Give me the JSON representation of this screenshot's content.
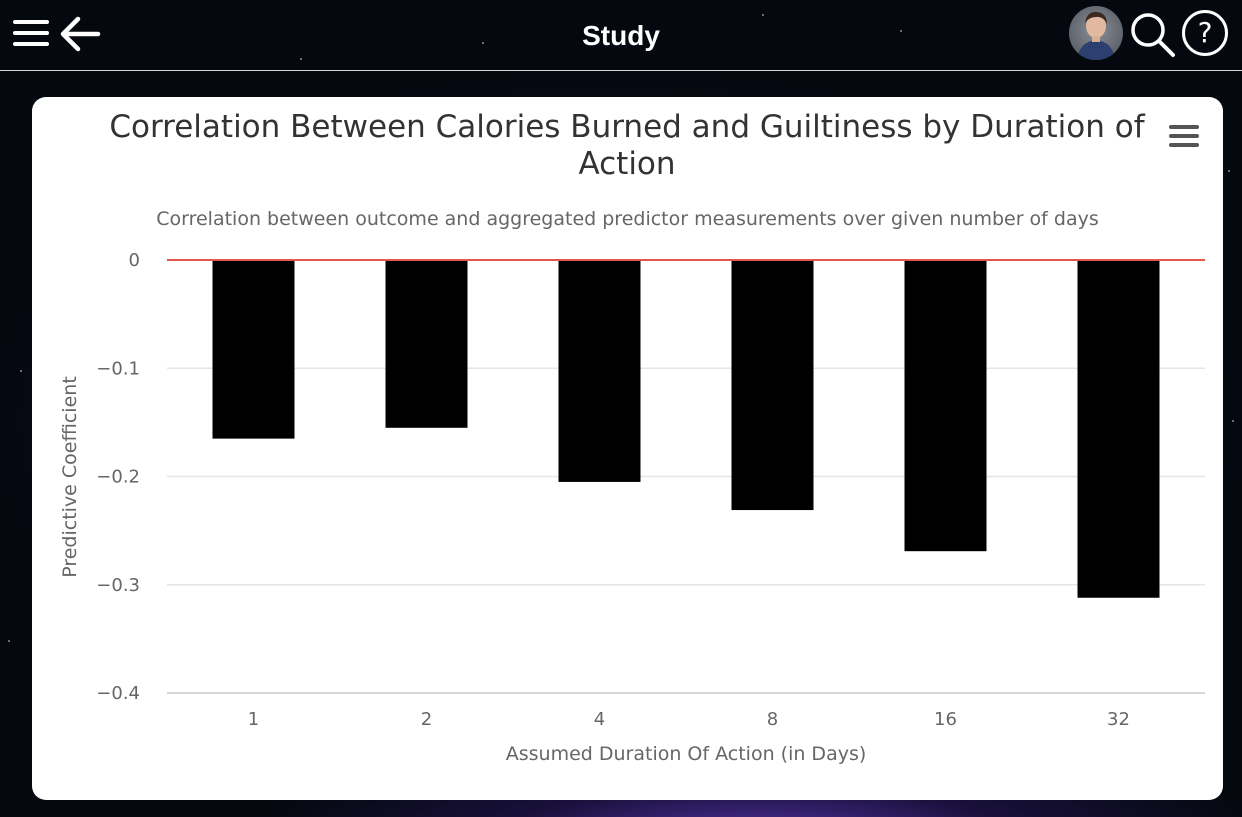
{
  "app": {
    "title": "Study"
  },
  "header": {
    "menu_icon": "hamburger-menu-icon",
    "back_icon": "arrow-left-icon",
    "avatar": "user-avatar",
    "search_icon": "search-icon",
    "help_icon": "help-icon",
    "help_glyph": "?"
  },
  "colors": {
    "bar": "#000000",
    "zero_line": "#e2574c",
    "grid": "#e6e6e6"
  },
  "chart_data": {
    "type": "bar",
    "title": "Correlation Between Calories Burned and Guiltiness by Duration of Action",
    "subtitle": "Correlation between outcome and aggregated predictor measurements over given number of days",
    "xlabel": "Assumed Duration Of Action (in Days)",
    "ylabel": "Predictive Coefficient",
    "categories": [
      "1",
      "2",
      "4",
      "8",
      "16",
      "32"
    ],
    "values": [
      -0.165,
      -0.155,
      -0.205,
      -0.231,
      -0.269,
      -0.312
    ],
    "ylim": [
      -0.4,
      0
    ],
    "yticks": [
      0,
      -0.1,
      -0.2,
      -0.3,
      -0.4
    ],
    "ytick_labels": [
      "0",
      "−0.1",
      "−0.2",
      "−0.3",
      "−0.4"
    ],
    "grid": true,
    "legend": "none"
  }
}
